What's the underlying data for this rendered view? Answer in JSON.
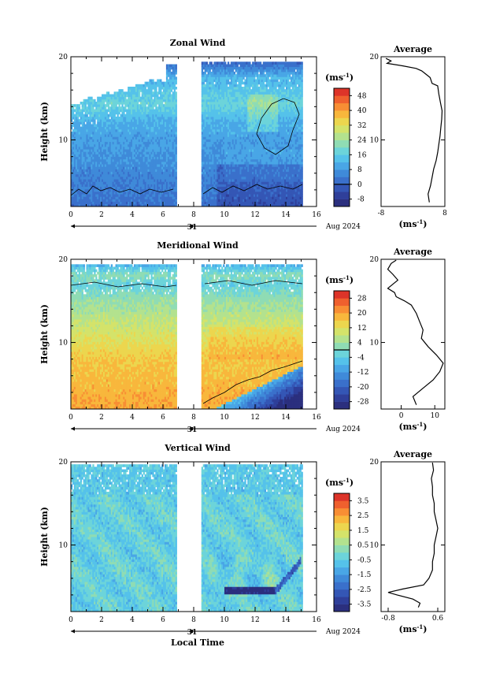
{
  "chart_data": [
    {
      "type": "heatmap",
      "title": "Zonal Wind",
      "ylabel": "Height (km)",
      "xlim": [
        0,
        16
      ],
      "ylim": [
        2,
        20
      ],
      "x_ticks": [
        "0",
        "2",
        "4",
        "6",
        "8",
        "10",
        "12",
        "14",
        "16"
      ],
      "y_ticks": [
        "20",
        "10"
      ],
      "day_label": "31",
      "date_label": "Aug 2024",
      "colorbar": {
        "unit_base": "(ms",
        "unit_exp": "-1",
        "unit_close": ")",
        "ticks": [
          "48",
          "40",
          "32",
          "24",
          "16",
          "8",
          "0",
          "-8"
        ],
        "min": -12,
        "max": 52,
        "zero_line": 0,
        "colors": [
          "#2b2f7e",
          "#2f3f9a",
          "#3456b5",
          "#3a70cb",
          "#3f8ad9",
          "#49a6e6",
          "#55c2ea",
          "#6cd4da",
          "#8fdcb4",
          "#b3e28e",
          "#d4e36a",
          "#ecd64e",
          "#f8b73c",
          "#f88e34",
          "#ef602e",
          "#dd3429"
        ]
      },
      "average_panel": {
        "title": "Average",
        "xlabel_base": "(ms",
        "xlabel_exp": "-1",
        "xlabel_close": ")",
        "x_ticks": [
          "-8",
          "8"
        ],
        "y_ticks": [
          "20",
          "10"
        ],
        "xlim": [
          -8,
          8
        ],
        "profile": [
          [
            4.1,
            2.5
          ],
          [
            3.8,
            3.5
          ],
          [
            4.4,
            4.5
          ],
          [
            4.8,
            5.5
          ],
          [
            5.2,
            6.5
          ],
          [
            5.8,
            7.5
          ],
          [
            6.2,
            8.5
          ],
          [
            6.5,
            9.5
          ],
          [
            6.8,
            10.5
          ],
          [
            7.0,
            11.5
          ],
          [
            7.2,
            12.5
          ],
          [
            7.3,
            13.5
          ],
          [
            6.9,
            14.5
          ],
          [
            6.5,
            15.5
          ],
          [
            6.2,
            16.5
          ],
          [
            4.8,
            16.8
          ],
          [
            4.3,
            17.5
          ],
          [
            3.0,
            18.0
          ],
          [
            2.2,
            18.3
          ],
          [
            0.8,
            18.6
          ],
          [
            -2.5,
            18.9
          ],
          [
            -6.5,
            19.2
          ],
          [
            -5.5,
            19.5
          ],
          [
            -6.8,
            19.8
          ]
        ]
      }
    },
    {
      "type": "heatmap",
      "title": "Meridional Wind",
      "ylabel": "Height (km)",
      "xlim": [
        0,
        16
      ],
      "ylim": [
        2,
        20
      ],
      "x_ticks": [
        "0",
        "2",
        "4",
        "6",
        "8",
        "10",
        "12",
        "14",
        "16"
      ],
      "y_ticks": [
        "20",
        "10"
      ],
      "day_label": "31",
      "date_label": "Aug 2024",
      "colorbar": {
        "unit_base": "(ms",
        "unit_exp": "-1",
        "unit_close": ")",
        "ticks": [
          "28",
          "20",
          "12",
          "4",
          "-4",
          "-12",
          "-20",
          "-28"
        ],
        "min": -32,
        "max": 32,
        "zero_line": 0,
        "colors": [
          "#2b2f7e",
          "#2f3f9a",
          "#3456b5",
          "#3a70cb",
          "#3f8ad9",
          "#49a6e6",
          "#55c2ea",
          "#6cd4da",
          "#8fdcb4",
          "#b3e28e",
          "#d4e36a",
          "#ecd64e",
          "#f8b73c",
          "#f88e34",
          "#ef602e",
          "#dd3429"
        ]
      },
      "average_panel": {
        "title": "Average",
        "xlabel_base": "(ms",
        "xlabel_exp": "-1",
        "xlabel_close": ")",
        "x_ticks": [
          "0",
          "10"
        ],
        "y_ticks": [
          "20",
          "10"
        ],
        "xlim": [
          -6,
          13
        ],
        "profile": [
          [
            4.5,
            2.5
          ],
          [
            3.5,
            3.5
          ],
          [
            6.5,
            4.5
          ],
          [
            9.5,
            5.5
          ],
          [
            11.5,
            6.5
          ],
          [
            12.5,
            7.5
          ],
          [
            10.5,
            8.5
          ],
          [
            8.0,
            9.5
          ],
          [
            6.0,
            10.5
          ],
          [
            6.5,
            11.5
          ],
          [
            5.5,
            12.5
          ],
          [
            4.5,
            13.5
          ],
          [
            3.0,
            14.5
          ],
          [
            1.0,
            15.0
          ],
          [
            -1.5,
            15.5
          ],
          [
            -2.0,
            16.0
          ],
          [
            -4.0,
            16.5
          ],
          [
            -2.5,
            17.0
          ],
          [
            -1.0,
            17.5
          ],
          [
            -2.5,
            18.2
          ],
          [
            -4.0,
            18.8
          ],
          [
            -3.0,
            19.5
          ],
          [
            -1.5,
            19.9
          ]
        ]
      }
    },
    {
      "type": "heatmap",
      "title": "Vertical Wind",
      "ylabel": "Height (km)",
      "xlabel": "Local Time",
      "xlim": [
        0,
        16
      ],
      "ylim": [
        2,
        20
      ],
      "x_ticks": [
        "0",
        "2",
        "4",
        "6",
        "8",
        "10",
        "12",
        "14",
        "16"
      ],
      "y_ticks": [
        "20",
        "10"
      ],
      "day_label": "31",
      "date_label": "Aug 2024",
      "colorbar": {
        "unit_base": "(ms",
        "unit_exp": "-1",
        "unit_close": ")",
        "ticks": [
          "3.5",
          "2.5",
          "1.5",
          "0.5",
          "-0.5",
          "-1.5",
          "-2.5",
          "-3.5"
        ],
        "min": -4,
        "max": 4,
        "zero_line": null,
        "colors": [
          "#2b2f7e",
          "#2f3f9a",
          "#3456b5",
          "#3a70cb",
          "#3f8ad9",
          "#49a6e6",
          "#55c2ea",
          "#6cd4da",
          "#8fdcb4",
          "#b3e28e",
          "#d4e36a",
          "#ecd64e",
          "#f8b73c",
          "#f88e34",
          "#ef602e",
          "#dd3429"
        ]
      },
      "average_panel": {
        "title": "Average",
        "xlabel_base": "(ms",
        "xlabel_exp": "-1",
        "xlabel_close": ")",
        "x_ticks": [
          "-0.8",
          "0.6"
        ],
        "y_ticks": [
          "20",
          "10"
        ],
        "xlim": [
          -1.0,
          0.8
        ],
        "profile": [
          [
            0.05,
            2.5
          ],
          [
            0.1,
            3.0
          ],
          [
            -0.1,
            3.5
          ],
          [
            -0.55,
            4.0
          ],
          [
            -0.8,
            4.3
          ],
          [
            -0.4,
            4.7
          ],
          [
            0.2,
            5.2
          ],
          [
            0.35,
            6.0
          ],
          [
            0.45,
            7.0
          ],
          [
            0.45,
            8.0
          ],
          [
            0.5,
            9.0
          ],
          [
            0.5,
            10.0
          ],
          [
            0.55,
            11.0
          ],
          [
            0.6,
            12.0
          ],
          [
            0.55,
            13.0
          ],
          [
            0.5,
            14.0
          ],
          [
            0.5,
            15.0
          ],
          [
            0.45,
            16.0
          ],
          [
            0.45,
            17.0
          ],
          [
            0.42,
            18.0
          ],
          [
            0.48,
            19.0
          ],
          [
            0.45,
            19.9
          ]
        ]
      }
    }
  ]
}
